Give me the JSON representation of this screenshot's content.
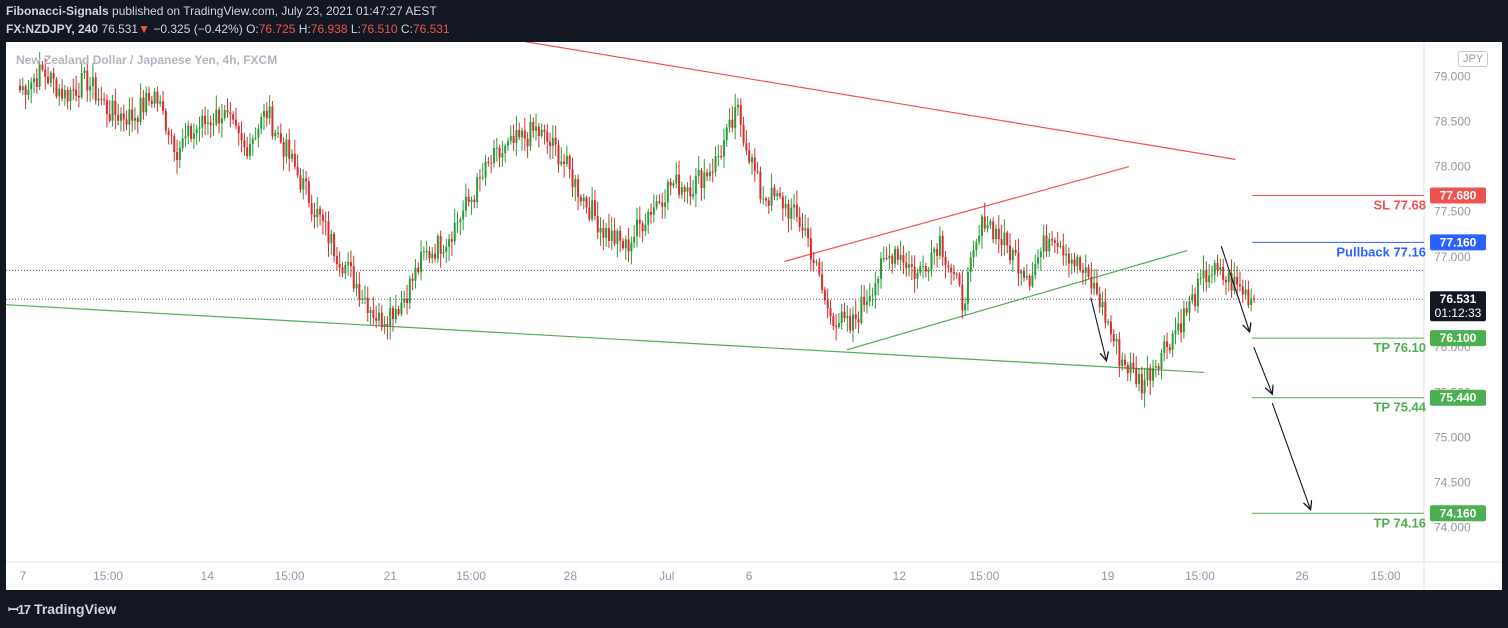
{
  "header": {
    "author": "Fibonacci-Signals",
    "published_text": "published on TradingView.com, July 23, 2021 01:47:27 AEST",
    "symbol": "FX:NZDJPY, 240",
    "last": "76.531",
    "change_arrow": "▼",
    "change": "−0.325 (−0.42%)",
    "o_label": "O:",
    "o_value": "76.725",
    "h_label": "H:",
    "h_value": "76.938",
    "l_label": "L:",
    "l_value": "76.510",
    "c_label": "C:",
    "c_value": "76.531"
  },
  "symbol_description": "New Zealand Dollar / Japanese Yen, 4h, FXCM",
  "currency_badge": "JPY",
  "footer": {
    "brand": "TradingView",
    "brand_icon": "tradingview-logo-icon"
  },
  "colors": {
    "up": "#26a69a",
    "candle_up": "#2e9b3a",
    "candle_down": "#d32f2f",
    "red_line": "#ef5350",
    "green_line": "#4caf50",
    "blue": "#2962ff",
    "background": "#131722"
  },
  "chart_data": {
    "type": "candlestick",
    "title": "New Zealand Dollar / Japanese Yen, 4h, FXCM",
    "ylim": [
      73.62,
      79.38
    ],
    "y_ticks": [
      "79.000",
      "78.500",
      "78.000",
      "77.500",
      "77.000",
      "76.500",
      "76.000",
      "75.500",
      "75.000",
      "74.500",
      "74.000"
    ],
    "x_ticks": [
      "7",
      "15:00",
      "14",
      "15:00",
      "21",
      "15:00",
      "28",
      "Jul",
      "6",
      "12",
      "15:00",
      "19",
      "15:00",
      "26",
      "15:00"
    ],
    "close_path": [
      78.85,
      79.05,
      78.8,
      78.95,
      78.6,
      78.55,
      78.8,
      78.2,
      78.45,
      78.6,
      78.2,
      78.6,
      78.1,
      77.6,
      77.1,
      76.7,
      76.3,
      76.5,
      77.0,
      77.2,
      77.6,
      78.05,
      78.25,
      78.4,
      78.15,
      77.7,
      77.3,
      77.1,
      77.5,
      77.8,
      77.8,
      78.05,
      78.6,
      77.7,
      77.6,
      77.3,
      76.4,
      76.2,
      76.7,
      77.1,
      76.8,
      77.2,
      76.5,
      77.45,
      77.1,
      76.8,
      77.3,
      76.95,
      76.6,
      75.9,
      75.6,
      76.0,
      76.4,
      76.85,
      76.72,
      76.531
    ],
    "last_price": "76.531",
    "countdown": "01:12:33",
    "levels": [
      {
        "name": "SL 77.68",
        "badge": "77.680",
        "value": 77.68,
        "color": "#ef5350"
      },
      {
        "name": "Pullback 77.16",
        "badge": "77.160",
        "value": 77.16,
        "color": "#2962ff"
      },
      {
        "name": "TP 76.10",
        "badge": "76.100",
        "value": 76.1,
        "color": "#4caf50"
      },
      {
        "name": "TP 75.44",
        "badge": "75.440",
        "value": 75.44,
        "color": "#4caf50"
      },
      {
        "name": "TP 74.16",
        "badge": "74.160",
        "value": 74.16,
        "color": "#4caf50"
      }
    ],
    "trendlines": [
      {
        "name": "upper-resistance-line",
        "color": "#ef5350",
        "from": [
          0.36,
          79.4
        ],
        "to": [
          0.867,
          78.08
        ]
      },
      {
        "name": "channel-top-line",
        "color": "#ef5350",
        "from": [
          0.549,
          76.95
        ],
        "to": [
          0.792,
          78.0
        ]
      },
      {
        "name": "channel-bottom-line",
        "color": "#4caf50",
        "from": [
          0.593,
          75.97
        ],
        "to": [
          0.833,
          77.07
        ]
      },
      {
        "name": "lower-support-line",
        "color": "#4caf50",
        "from": [
          0.0,
          76.47
        ],
        "to": [
          0.845,
          75.72
        ]
      }
    ],
    "arrows": [
      {
        "from": [
          0.765,
          76.55
        ],
        "to": [
          0.776,
          75.85
        ]
      },
      {
        "from": [
          0.857,
          77.12
        ],
        "to": [
          0.877,
          76.17
        ]
      },
      {
        "from": [
          0.88,
          76.0
        ],
        "to": [
          0.893,
          75.48
        ]
      },
      {
        "from": [
          0.893,
          75.38
        ],
        "to": [
          0.92,
          74.2
        ]
      }
    ],
    "dotted_lines": [
      76.85,
      76.531
    ],
    "grid": false,
    "legend": "none"
  }
}
